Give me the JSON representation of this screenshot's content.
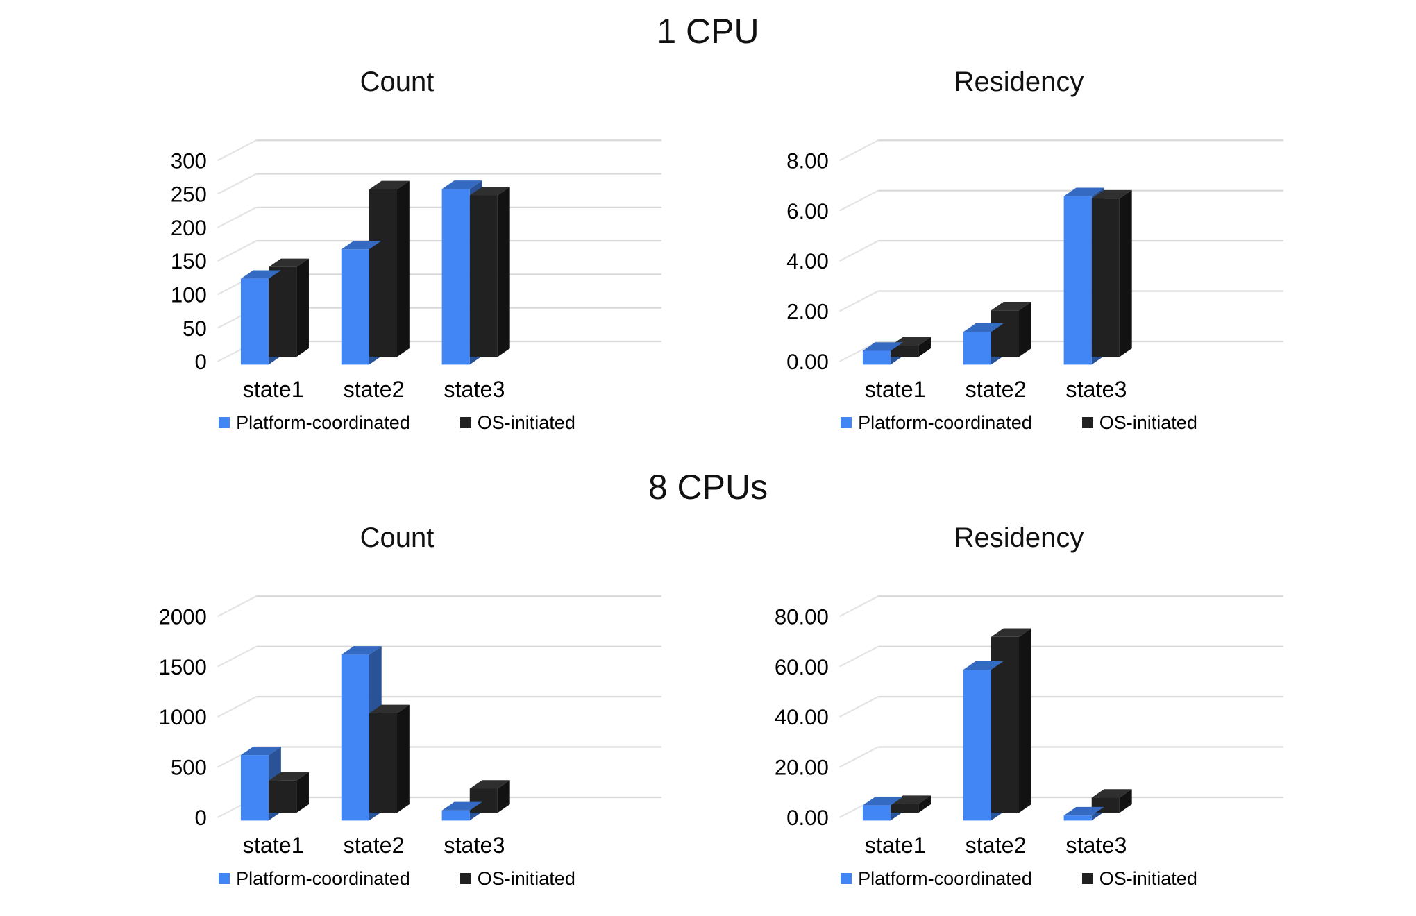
{
  "page": {
    "sections": [
      {
        "title": "1 CPU"
      },
      {
        "title": "8 CPUs"
      }
    ]
  },
  "chart_data": [
    {
      "type": "bar",
      "section": "1 CPU",
      "title": "Count",
      "categories": [
        "state1",
        "state2",
        "state3"
      ],
      "series": [
        {
          "name": "Platform-coordinated",
          "color": "#4285F4",
          "values": [
            128,
            172,
            262
          ]
        },
        {
          "name": "OS-initiated",
          "color": "#212121",
          "values": [
            134,
            250,
            241
          ]
        }
      ],
      "ylim": [
        0,
        300
      ],
      "yticks": [
        0,
        50,
        100,
        150,
        200,
        250,
        300
      ],
      "tick_decimals": 0,
      "grid": true,
      "legend_position": "bottom",
      "style": "3d-column"
    },
    {
      "type": "bar",
      "section": "1 CPU",
      "title": "Residency",
      "categories": [
        "state1",
        "state2",
        "state3"
      ],
      "series": [
        {
          "name": "Platform-coordinated",
          "color": "#4285F4",
          "values": [
            0.55,
            1.3,
            6.7
          ]
        },
        {
          "name": "OS-initiated",
          "color": "#212121",
          "values": [
            0.45,
            1.85,
            6.3
          ]
        }
      ],
      "ylim": [
        0,
        8
      ],
      "yticks": [
        0,
        2,
        4,
        6,
        8
      ],
      "tick_decimals": 2,
      "grid": true,
      "legend_position": "bottom",
      "style": "3d-column"
    },
    {
      "type": "bar",
      "section": "8 CPUs",
      "title": "Count",
      "categories": [
        "state1",
        "state2",
        "state3"
      ],
      "series": [
        {
          "name": "Platform-coordinated",
          "color": "#4285F4",
          "values": [
            650,
            1650,
            100
          ]
        },
        {
          "name": "OS-initiated",
          "color": "#212121",
          "values": [
            320,
            990,
            240
          ]
        }
      ],
      "ylim": [
        0,
        2000
      ],
      "yticks": [
        0,
        500,
        1000,
        1500,
        2000
      ],
      "tick_decimals": 0,
      "grid": true,
      "legend_position": "bottom",
      "style": "3d-column"
    },
    {
      "type": "bar",
      "section": "8 CPUs",
      "title": "Residency",
      "categories": [
        "state1",
        "state2",
        "state3"
      ],
      "series": [
        {
          "name": "Platform-coordinated",
          "color": "#4285F4",
          "values": [
            6,
            60,
            2
          ]
        },
        {
          "name": "OS-initiated",
          "color": "#212121",
          "values": [
            3.5,
            70,
            6
          ]
        }
      ],
      "ylim": [
        0,
        80
      ],
      "yticks": [
        0,
        20,
        40,
        60,
        80
      ],
      "tick_decimals": 2,
      "grid": true,
      "legend_position": "bottom",
      "style": "3d-column"
    }
  ]
}
